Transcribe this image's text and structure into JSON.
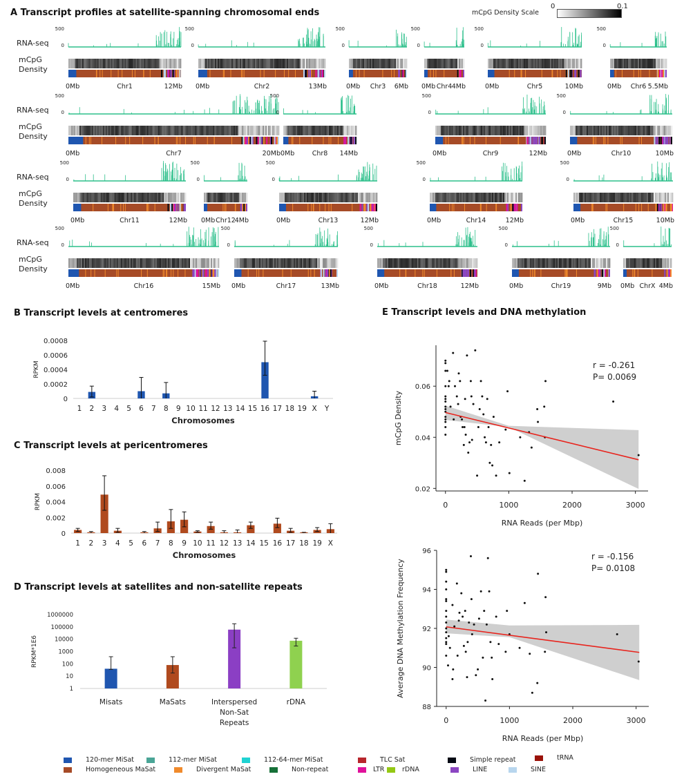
{
  "panelA": {
    "title": "A Transcript profiles at satellite-spanning chromosomal ends",
    "scale_label": "mCpG Density Scale",
    "scale_min": "0",
    "scale_max": "0.1",
    "row_label_rna": "RNA-seq",
    "row_label_mcpg_1": "mCpG",
    "row_label_mcpg_2": "Density",
    "rna_tick_top": "500",
    "rna_tick_bottom": "0",
    "chromosomes": [
      {
        "name": "Chr1",
        "start": "0Mb",
        "end": "12Mb"
      },
      {
        "name": "Chr2",
        "start": "0Mb",
        "end": "13Mb"
      },
      {
        "name": "Chr3",
        "start": "0Mb",
        "end": "6Mb"
      },
      {
        "name": "Chr4",
        "start": "0Mb",
        "end": "4Mb"
      },
      {
        "name": "Chr5",
        "start": "0Mb",
        "end": "10Mb"
      },
      {
        "name": "Chr6",
        "start": "0Mb",
        "end": "5.5Mb"
      },
      {
        "name": "Chr7",
        "start": "0Mb",
        "end": "20Mb"
      },
      {
        "name": "Chr8",
        "start": "0Mb",
        "end": "14Mb"
      },
      {
        "name": "Chr9",
        "start": "0Mb",
        "end": "12Mb"
      },
      {
        "name": "Chr10",
        "start": "0Mb",
        "end": "10Mb"
      },
      {
        "name": "Chr11",
        "start": "0Mb",
        "end": "12Mb"
      },
      {
        "name": "Chr12",
        "start": "0Mb",
        "end": "4Mb"
      },
      {
        "name": "Chr13",
        "start": "0Mb",
        "end": "12Mb"
      },
      {
        "name": "Chr14",
        "start": "0Mb",
        "end": "12Mb"
      },
      {
        "name": "Chr15",
        "start": "0Mb",
        "end": "10Mb"
      },
      {
        "name": "Chr16",
        "start": "0Mb",
        "end": "15Mb"
      },
      {
        "name": "Chr17",
        "start": "0Mb",
        "end": "13Mb"
      },
      {
        "name": "Chr18",
        "start": "0Mb",
        "end": "12Mb"
      },
      {
        "name": "Chr19",
        "start": "0Mb",
        "end": "9Mb"
      },
      {
        "name": "ChrX",
        "start": "0Mb",
        "end": "4Mb"
      }
    ]
  },
  "chart_data": [
    {
      "id": "B",
      "type": "bar",
      "title": "B Transcript levels at centromeres",
      "xlabel": "Chromosomes",
      "ylabel": "RPKM",
      "ylim": [
        0,
        0.0008
      ],
      "yticks": [
        "0",
        "0.0002",
        "0.0004",
        "0.0006",
        "0.0008"
      ],
      "categories": [
        "1",
        "2",
        "3",
        "4",
        "5",
        "6",
        "7",
        "8",
        "9",
        "10",
        "11",
        "12",
        "13",
        "14",
        "15",
        "16",
        "17",
        "18",
        "19",
        "X",
        "Y"
      ],
      "values": [
        0,
        9e-05,
        0,
        0,
        0,
        0.0001,
        0,
        7e-05,
        0,
        0,
        0,
        0,
        0,
        0,
        0,
        0.0005,
        0,
        0,
        0,
        3e-05,
        0
      ],
      "err_low": [
        0,
        2e-05,
        0,
        0,
        0,
        0,
        0,
        0,
        0,
        0,
        0,
        0,
        0,
        0,
        0,
        0.00032,
        0,
        0,
        0,
        0,
        0
      ],
      "err_high": [
        0,
        0.00017,
        0,
        0,
        0,
        0.00029,
        0,
        0.00022,
        0,
        0,
        0,
        0,
        0,
        0,
        0,
        0.00079,
        0,
        0,
        0,
        0.0001,
        0
      ],
      "color": "#1f56b0"
    },
    {
      "id": "C",
      "type": "bar",
      "title": "C Transcript levels at pericentromeres",
      "xlabel": "Chromosomes",
      "ylabel": "RPKM",
      "ylim": [
        0,
        0.008
      ],
      "yticks": [
        "0",
        "0.002",
        "0.004",
        "0.006",
        "0.008"
      ],
      "categories": [
        "1",
        "2",
        "3",
        "4",
        "5",
        "6",
        "7",
        "8",
        "9",
        "10",
        "11",
        "12",
        "13",
        "14",
        "15",
        "16",
        "17",
        "18",
        "19",
        "X"
      ],
      "values": [
        0.0004,
        0.0001,
        0.0049,
        0.0003,
        0,
        0.0001,
        0.0006,
        0.0015,
        0.0017,
        0.0002,
        0.0009,
        0.0001,
        0.0001,
        0.001,
        0,
        0.0012,
        0.0003,
        0.0001,
        0.0004,
        0.0005
      ],
      "err_low": [
        0.0002,
        0,
        0.0029,
        0.0001,
        0,
        0,
        0.0002,
        0.0006,
        0.0008,
        0.0001,
        0.0005,
        0,
        0,
        0.0006,
        0,
        0.0007,
        0.0001,
        0,
        0.0002,
        0
      ],
      "err_high": [
        0.0006,
        0.0002,
        0.0073,
        0.0006,
        0,
        0.0002,
        0.0014,
        0.003,
        0.0027,
        0.0003,
        0.0014,
        0.0003,
        0.0004,
        0.0014,
        0,
        0.0019,
        0.0006,
        0.0001,
        0.0007,
        0.0012
      ],
      "color": "#b04a1e"
    },
    {
      "id": "D",
      "type": "bar",
      "scale": "log",
      "title": "D Transcript levels at satellites and non-satellite repeats",
      "ylabel": "RPKM*1E6",
      "ylim": [
        1,
        1000000
      ],
      "yticks": [
        "1",
        "10",
        "100",
        "1000",
        "10000",
        "100000",
        "1000000"
      ],
      "categories": [
        [
          "Misats"
        ],
        [
          "MaSats"
        ],
        [
          "Interspersed",
          "Non-Sat",
          "Repeats"
        ],
        [
          "rDNA"
        ]
      ],
      "values": [
        40,
        80,
        60000,
        7500
      ],
      "err_low": [
        35,
        18,
        2000,
        2800
      ],
      "err_high": [
        380,
        380,
        180000,
        12000
      ],
      "colors": [
        "#1f56b0",
        "#b04a1e",
        "#8b3fc4",
        "#8fd14f"
      ]
    },
    {
      "id": "E1",
      "type": "scatter",
      "title": "E Transcript levels and DNA methylation",
      "xlabel": "RNA Reads (per Mbp)",
      "ylabel": "mCpG Density",
      "xlim": [
        -150,
        3200
      ],
      "ylim": [
        0.019,
        0.076
      ],
      "xticks": [
        "0",
        "1000",
        "2000",
        "3000"
      ],
      "yticks": [
        "0.02",
        "0.04",
        "0.06"
      ],
      "annotation": [
        "r = -0.261",
        "P= 0.0069"
      ],
      "fit": {
        "x0": 0,
        "y0": 0.0497,
        "x1": 3050,
        "y1": 0.0312
      },
      "ci": {
        "low0": 0.0468,
        "high0": 0.0524,
        "lowmid": 0.044,
        "highmid": 0.0445,
        "low1": 0.0198,
        "high1": 0.0428
      },
      "x": [
        0,
        0,
        0,
        0,
        0,
        0,
        0,
        0,
        0,
        0,
        0,
        0,
        0,
        0,
        0,
        30,
        50,
        60,
        80,
        120,
        130,
        150,
        180,
        200,
        210,
        230,
        240,
        260,
        270,
        290,
        300,
        310,
        320,
        340,
        360,
        380,
        400,
        410,
        420,
        440,
        470,
        500,
        520,
        540,
        560,
        580,
        600,
        620,
        640,
        660,
        680,
        700,
        720,
        740,
        760,
        800,
        850,
        950,
        980,
        1010,
        1180,
        1250,
        1320,
        1360,
        1450,
        1460,
        1560,
        1570,
        1580,
        2650,
        3050
      ],
      "y": [
        0.07,
        0.069,
        0.066,
        0.06,
        0.056,
        0.055,
        0.052,
        0.051,
        0.05,
        0.048,
        0.047,
        0.044,
        0.041,
        0.054,
        0.046,
        0.066,
        0.06,
        0.062,
        0.052,
        0.073,
        0.047,
        0.06,
        0.056,
        0.053,
        0.065,
        0.062,
        0.048,
        0.047,
        0.044,
        0.037,
        0.044,
        0.055,
        0.041,
        0.072,
        0.034,
        0.038,
        0.062,
        0.056,
        0.039,
        0.053,
        0.074,
        0.025,
        0.044,
        0.051,
        0.062,
        0.056,
        0.049,
        0.04,
        0.038,
        0.055,
        0.044,
        0.03,
        0.037,
        0.029,
        0.048,
        0.025,
        0.038,
        0.043,
        0.058,
        0.026,
        0.04,
        0.023,
        0.042,
        0.036,
        0.051,
        0.046,
        0.052,
        0.04,
        0.062,
        0.054,
        0.033
      ]
    },
    {
      "id": "E2",
      "type": "scatter",
      "xlabel": "RNA Reads (per Mbp)",
      "ylabel": "Average DNA Methylation Frequency",
      "xlim": [
        -150,
        3200
      ],
      "ylim": [
        88,
        96
      ],
      "xticks": [
        "0",
        "1000",
        "2000",
        "3000"
      ],
      "yticks": [
        "88",
        "90",
        "92",
        "94",
        "96"
      ],
      "annotation": [
        "r = -0.156",
        "P= 0.0108"
      ],
      "fit": {
        "x0": 0,
        "y0": 92.08,
        "x1": 3050,
        "y1": 90.77
      },
      "ci": {
        "low0": 91.75,
        "high0": 92.45,
        "lowmid": 91.55,
        "highmid": 92.15,
        "low1": 89.35,
        "high1": 92.18
      },
      "x": [
        0,
        0,
        0,
        0,
        0,
        0,
        0,
        0,
        0,
        0,
        0,
        0,
        0,
        0,
        0,
        30,
        40,
        60,
        100,
        100,
        110,
        130,
        170,
        180,
        200,
        210,
        240,
        260,
        280,
        300,
        310,
        330,
        340,
        360,
        390,
        400,
        410,
        440,
        470,
        500,
        520,
        550,
        580,
        600,
        620,
        640,
        660,
        680,
        700,
        720,
        730,
        790,
        830,
        940,
        960,
        1000,
        1160,
        1240,
        1320,
        1360,
        1440,
        1450,
        1560,
        1570,
        1580,
        2700,
        3040
      ],
      "y": [
        95,
        94.9,
        94.4,
        94,
        93.5,
        93.4,
        92.9,
        92.6,
        92.3,
        92,
        91.8,
        91.5,
        91.3,
        91.2,
        90.6,
        90.1,
        91.6,
        91,
        93.2,
        89.4,
        89.9,
        92.1,
        94.3,
        90.6,
        92.4,
        92.8,
        93.8,
        92.6,
        91.1,
        92.9,
        90.8,
        89.5,
        91.3,
        92.3,
        95.7,
        93.5,
        91.7,
        92.2,
        89.6,
        89.9,
        92.5,
        93.9,
        90.5,
        92.9,
        88.3,
        92.2,
        95.6,
        93.9,
        91.3,
        90.5,
        89.4,
        92.6,
        91.2,
        90.8,
        92.9,
        91.7,
        91,
        93.3,
        90.7,
        88.7,
        89.2,
        94.8,
        90.8,
        93.6,
        91.8,
        91.7,
        90.3
      ]
    }
  ],
  "legend": [
    {
      "label": "120-mer MiSat",
      "color": "#1f56b0"
    },
    {
      "label": "112-mer MiSat",
      "color": "#4aa596"
    },
    {
      "label": "112-64-mer MiSat",
      "color": "#1fd2d2"
    },
    {
      "label": "TLC Sat",
      "color": "#b8262c"
    },
    {
      "label": "Simple repeat",
      "color": "#050a14"
    },
    {
      "label": "tRNA",
      "color": "#9a1208"
    },
    {
      "label": "Homogeneous MaSat",
      "color": "#a64b27"
    },
    {
      "label": "Divergent MaSat",
      "color": "#f08a2c"
    },
    {
      "label": "Non-repeat",
      "color": "#167038"
    },
    {
      "label": "LTR",
      "color": "#e0119b"
    },
    {
      "label": "rDNA",
      "color": "#94c814"
    },
    {
      "label": "LINE",
      "color": "#8b46c2"
    },
    {
      "label": "SINE",
      "color": "#b8d6ee"
    }
  ],
  "colors": {
    "rna_line": "#2bbf8a",
    "fit_line": "#e8231c",
    "ci_band": "#cfcfcf"
  }
}
